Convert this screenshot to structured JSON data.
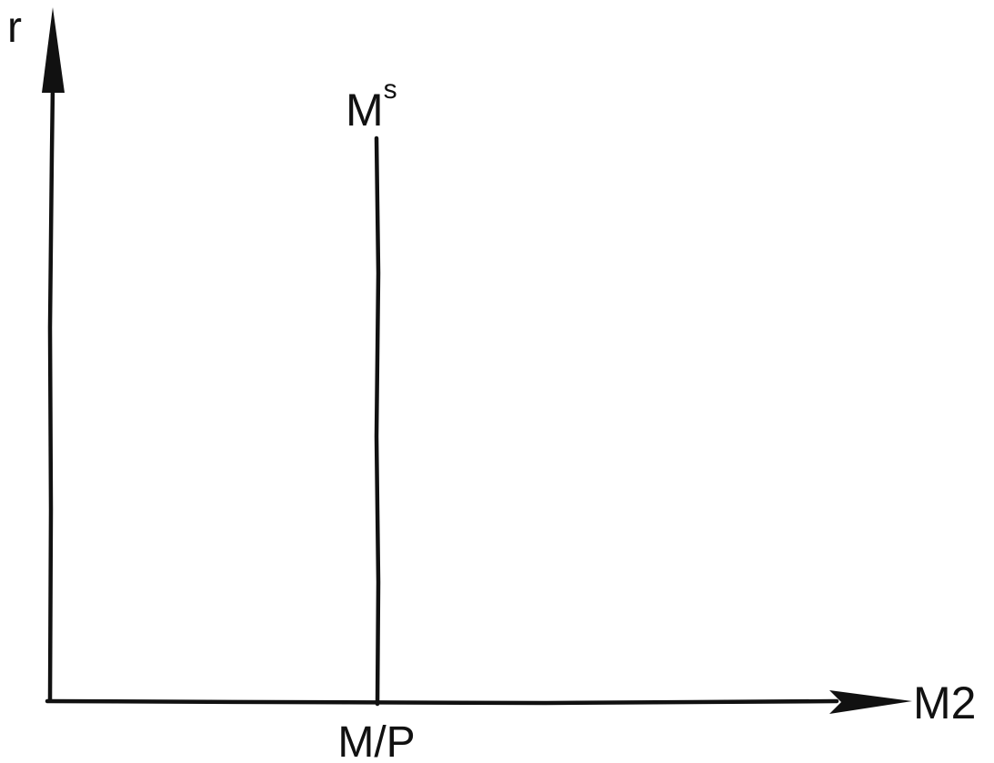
{
  "diagram": {
    "y_axis_label": "r",
    "x_axis_label": "M2",
    "supply_curve": {
      "label_main": "M",
      "label_superscript": "s"
    },
    "x_marker_label": "M/P"
  }
}
